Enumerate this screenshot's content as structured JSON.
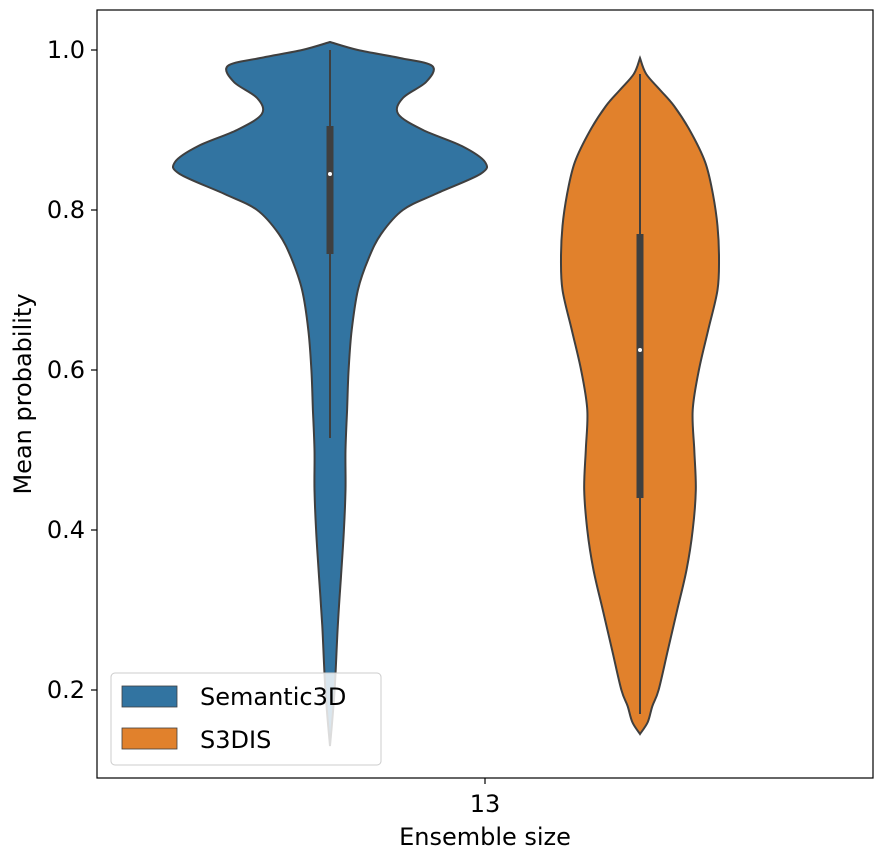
{
  "chart_data": {
    "type": "violin",
    "xlabel": "Ensemble size",
    "ylabel": "Mean probability",
    "categories": [
      "13"
    ],
    "ylim": [
      0.09,
      1.05
    ],
    "yticks": [
      {
        "value": 0.2,
        "label": "0.2"
      },
      {
        "value": 0.4,
        "label": "0.4"
      },
      {
        "value": 0.6,
        "label": "0.6"
      },
      {
        "value": 0.8,
        "label": "0.8"
      },
      {
        "value": 1.0,
        "label": "1.0"
      }
    ],
    "grid": false,
    "legend": {
      "placement": "lower-left"
    },
    "series": [
      {
        "name": "Semantic3D",
        "color": "#3274a1",
        "box": {
          "q1": 0.745,
          "median": 0.845,
          "q3": 0.905,
          "whisker_low": 0.515,
          "whisker_high": 1.0
        },
        "kde_min": 0.13,
        "kde_max": 1.01,
        "density": [
          [
            0.13,
            0.0
          ],
          [
            0.2,
            0.03
          ],
          [
            0.28,
            0.05
          ],
          [
            0.34,
            0.07
          ],
          [
            0.4,
            0.09
          ],
          [
            0.45,
            0.1
          ],
          [
            0.5,
            0.1
          ],
          [
            0.55,
            0.11
          ],
          [
            0.6,
            0.12
          ],
          [
            0.65,
            0.14
          ],
          [
            0.7,
            0.18
          ],
          [
            0.74,
            0.25
          ],
          [
            0.77,
            0.33
          ],
          [
            0.8,
            0.47
          ],
          [
            0.82,
            0.68
          ],
          [
            0.845,
            0.97
          ],
          [
            0.86,
            1.0
          ],
          [
            0.88,
            0.85
          ],
          [
            0.9,
            0.6
          ],
          [
            0.92,
            0.44
          ],
          [
            0.94,
            0.47
          ],
          [
            0.96,
            0.62
          ],
          [
            0.98,
            0.66
          ],
          [
            0.99,
            0.45
          ],
          [
            1.0,
            0.18
          ],
          [
            1.01,
            0.0
          ]
        ]
      },
      {
        "name": "S3DIS",
        "color": "#e1812c",
        "box": {
          "q1": 0.44,
          "median": 0.625,
          "q3": 0.77,
          "whisker_low": 0.17,
          "whisker_high": 0.97
        },
        "kde_min": 0.145,
        "kde_max": 0.99,
        "density": [
          [
            0.145,
            0.0
          ],
          [
            0.16,
            0.05
          ],
          [
            0.18,
            0.08
          ],
          [
            0.2,
            0.12
          ],
          [
            0.25,
            0.18
          ],
          [
            0.3,
            0.24
          ],
          [
            0.35,
            0.3
          ],
          [
            0.4,
            0.34
          ],
          [
            0.45,
            0.36
          ],
          [
            0.5,
            0.35
          ],
          [
            0.55,
            0.34
          ],
          [
            0.6,
            0.38
          ],
          [
            0.65,
            0.44
          ],
          [
            0.7,
            0.5
          ],
          [
            0.74,
            0.51
          ],
          [
            0.78,
            0.5
          ],
          [
            0.82,
            0.47
          ],
          [
            0.86,
            0.42
          ],
          [
            0.9,
            0.32
          ],
          [
            0.93,
            0.22
          ],
          [
            0.95,
            0.13
          ],
          [
            0.97,
            0.04
          ],
          [
            0.99,
            0.0
          ]
        ]
      }
    ]
  }
}
